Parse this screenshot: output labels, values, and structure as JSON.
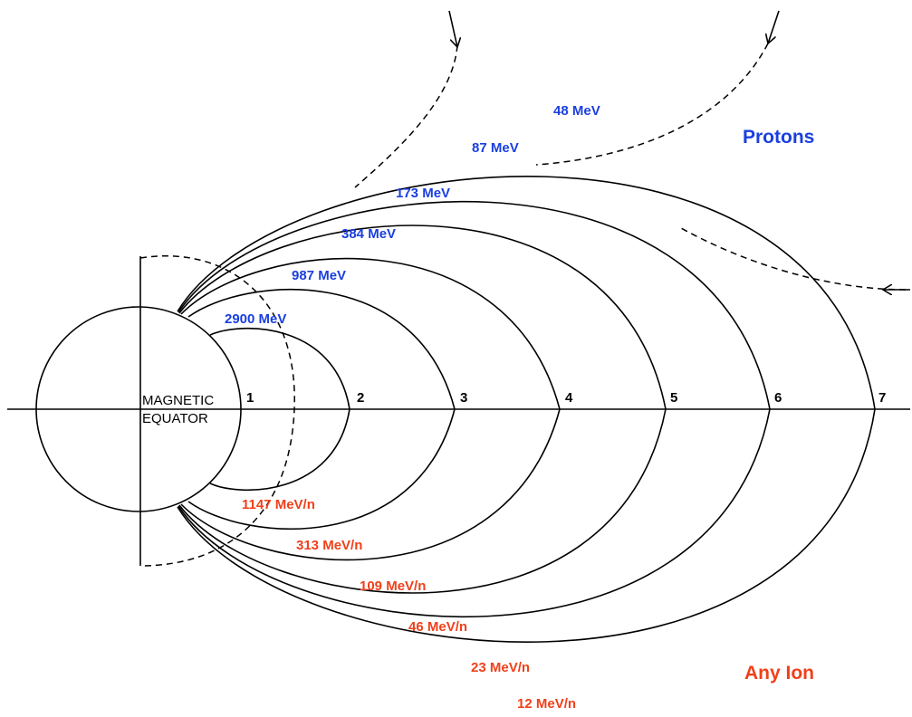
{
  "headers": {
    "protons": "Protons",
    "any_ion": "Any Ion"
  },
  "equator": {
    "line1": "MAGNETIC",
    "line2": "EQUATOR"
  },
  "shells": [
    {
      "L": "1",
      "proton_cutoff": "2900 MeV",
      "ion_cutoff": "1147 MeV/n"
    },
    {
      "L": "2",
      "proton_cutoff": "987 MeV",
      "ion_cutoff": "313 MeV/n"
    },
    {
      "L": "3",
      "proton_cutoff": "384 MeV",
      "ion_cutoff": "109 MeV/n"
    },
    {
      "L": "4",
      "proton_cutoff": "173 MeV",
      "ion_cutoff": "46 MeV/n"
    },
    {
      "L": "5",
      "proton_cutoff": "87 MeV",
      "ion_cutoff": "23 MeV/n"
    },
    {
      "L": "6",
      "proton_cutoff": "48 MeV",
      "ion_cutoff": "12 MeV/n"
    },
    {
      "L": "7"
    }
  ],
  "colors": {
    "proton": "#1a3fe0",
    "ion": "#f0401a",
    "line": "#000000"
  }
}
